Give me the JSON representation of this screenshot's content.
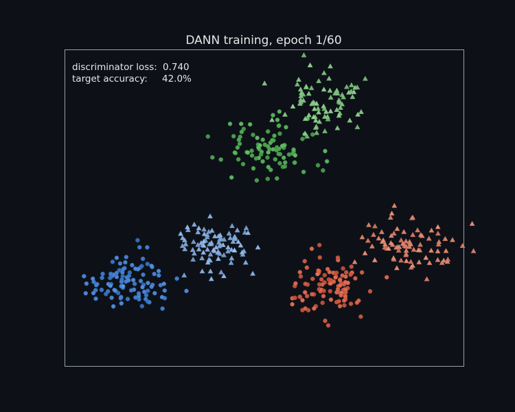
{
  "chart_data": {
    "type": "scatter",
    "title": "DANN training, epoch 1/60",
    "xlabel": "",
    "ylabel": "",
    "xlim": [
      0,
      100
    ],
    "ylim": [
      0,
      100
    ],
    "axes_visible": false,
    "grid": false,
    "annotations": {
      "loss_label": "discriminator loss:",
      "loss_value": "0.740",
      "acc_label": "target accuracy:",
      "acc_value": "42.0%"
    },
    "series": [
      {
        "domain": "source",
        "marker": "circle",
        "color": "#4a86d6",
        "cluster_center": [
          16,
          27
        ],
        "count": 100
      },
      {
        "domain": "target",
        "marker": "triangle",
        "color": "#8fb6e6",
        "cluster_center": [
          38,
          39
        ],
        "count": 90
      },
      {
        "domain": "source",
        "marker": "circle",
        "color": "#5bb35e",
        "cluster_center": [
          52,
          69
        ],
        "count": 90
      },
      {
        "domain": "target",
        "marker": "triangle",
        "color": "#8fd18f",
        "cluster_center": [
          65,
          83
        ],
        "count": 80
      },
      {
        "domain": "source",
        "marker": "circle",
        "color": "#d9664e",
        "cluster_center": [
          66,
          25
        ],
        "count": 100
      },
      {
        "domain": "target",
        "marker": "triangle",
        "color": "#e88e78",
        "cluster_center": [
          86,
          38
        ],
        "count": 85
      }
    ]
  }
}
